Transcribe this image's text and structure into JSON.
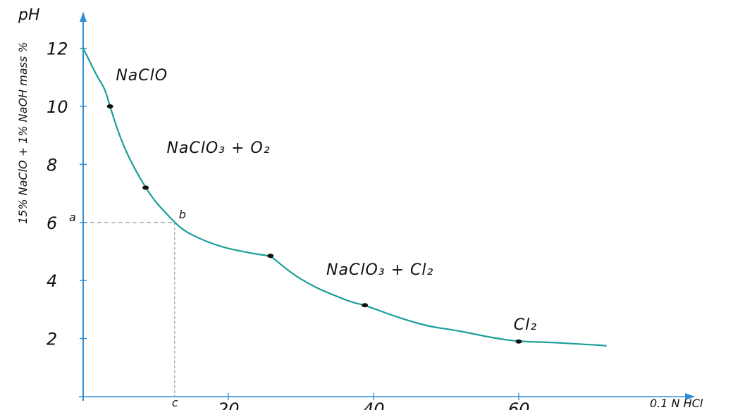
{
  "chart_data": {
    "type": "line",
    "ylabel_top": "pH",
    "ylabel_side": "15% NaClO + 1% NaOH mass %",
    "xlabel": "0.1 N HCl",
    "xlim": [
      0,
      72
    ],
    "ylim": [
      0,
      13
    ],
    "x_ticks": [
      20,
      40,
      60
    ],
    "y_ticks": [
      2,
      4,
      6,
      8,
      10,
      12
    ],
    "series": [
      {
        "points": [
          [
            0,
            12.0
          ],
          [
            1,
            11.5
          ],
          [
            2,
            11.0
          ],
          [
            3,
            10.6
          ],
          [
            3.7,
            10.0
          ],
          [
            4.2,
            9.6
          ],
          [
            5,
            9.0
          ],
          [
            6,
            8.4
          ],
          [
            7,
            7.9
          ],
          [
            8.6,
            7.2
          ],
          [
            10,
            6.7
          ],
          [
            11.5,
            6.3
          ],
          [
            12.6,
            6.0
          ],
          [
            14,
            5.7
          ],
          [
            16,
            5.45
          ],
          [
            18,
            5.25
          ],
          [
            20,
            5.1
          ],
          [
            22,
            5.0
          ],
          [
            24,
            4.9
          ],
          [
            25.8,
            4.85
          ],
          [
            27,
            4.6
          ],
          [
            29,
            4.2
          ],
          [
            31,
            3.9
          ],
          [
            33,
            3.65
          ],
          [
            35,
            3.45
          ],
          [
            37,
            3.25
          ],
          [
            38.8,
            3.15
          ],
          [
            42,
            2.85
          ],
          [
            45,
            2.6
          ],
          [
            48,
            2.4
          ],
          [
            51,
            2.3
          ],
          [
            54,
            2.15
          ],
          [
            57,
            2.0
          ],
          [
            60,
            1.9
          ],
          [
            63,
            1.88
          ],
          [
            66,
            1.85
          ],
          [
            69,
            1.8
          ],
          [
            71,
            1.78
          ],
          [
            72,
            1.75
          ]
        ]
      }
    ],
    "markers": [
      {
        "x": 3.7,
        "y": 10.0
      },
      {
        "x": 8.6,
        "y": 7.2
      },
      {
        "x": 25.8,
        "y": 4.85
      },
      {
        "x": 38.8,
        "y": 3.15
      },
      {
        "x": 60,
        "y": 1.9
      }
    ],
    "annotations": [
      {
        "text": "NaClO",
        "x": 4.5,
        "y": 10.9
      },
      {
        "text": "NaClO₃ + O₂",
        "x": 11.5,
        "y": 8.4
      },
      {
        "text": "NaClO₃ + Cl₂",
        "x": 33.5,
        "y": 4.2
      },
      {
        "text": "Cl₂",
        "x": 59.3,
        "y": 2.3
      }
    ],
    "guide": {
      "x": 12.6,
      "y": 6.0,
      "label_a": "a",
      "label_b": "b",
      "label_c": "c"
    },
    "colors": {
      "curve": "#1a9e98",
      "axis": "#2f8ed6",
      "marker": "#111111",
      "guide": "#888888"
    }
  }
}
